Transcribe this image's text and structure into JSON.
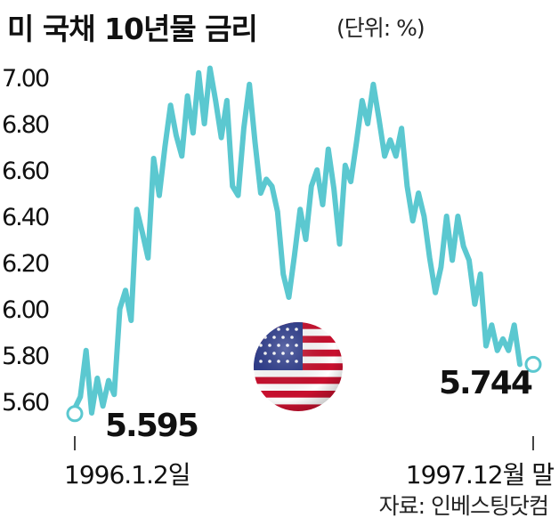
{
  "chart_data": {
    "type": "line",
    "title": "미 국채 10년물 금리",
    "unit_label": "(단위: %)",
    "source": "자료: 인베스팅닷컴",
    "x_labels": {
      "start": "1996.1.2일",
      "end": "1997.12월 말"
    },
    "y_ticks": [
      "5.60",
      "5.80",
      "6.00",
      "6.20",
      "6.40",
      "6.60",
      "6.80",
      "7.00"
    ],
    "ylim": [
      5.52,
      7.1
    ],
    "grid": false,
    "annotations": {
      "start_value": "5.595",
      "end_value": "5.744"
    },
    "line_color": "#5bc8d0",
    "series": [
      {
        "values": [
          5.57,
          5.62,
          5.82,
          5.55,
          5.7,
          5.58,
          5.69,
          5.63,
          6.0,
          6.08,
          5.95,
          6.43,
          6.33,
          6.22,
          6.65,
          6.49,
          6.7,
          6.88,
          6.75,
          6.66,
          6.92,
          6.76,
          7.02,
          6.8,
          7.04,
          6.9,
          6.74,
          6.9,
          6.53,
          6.49,
          6.78,
          6.97,
          6.72,
          6.5,
          6.56,
          6.53,
          6.42,
          6.15,
          6.05,
          6.23,
          6.43,
          6.3,
          6.53,
          6.6,
          6.45,
          6.69,
          6.52,
          6.28,
          6.62,
          6.55,
          6.72,
          6.9,
          6.8,
          6.97,
          6.82,
          6.66,
          6.73,
          6.66,
          6.78,
          6.53,
          6.38,
          6.5,
          6.4,
          6.22,
          6.07,
          6.18,
          6.4,
          6.21,
          6.4,
          6.27,
          6.21,
          6.02,
          6.15,
          5.84,
          5.93,
          5.82,
          5.87,
          5.82,
          5.93,
          5.76
        ]
      }
    ]
  }
}
